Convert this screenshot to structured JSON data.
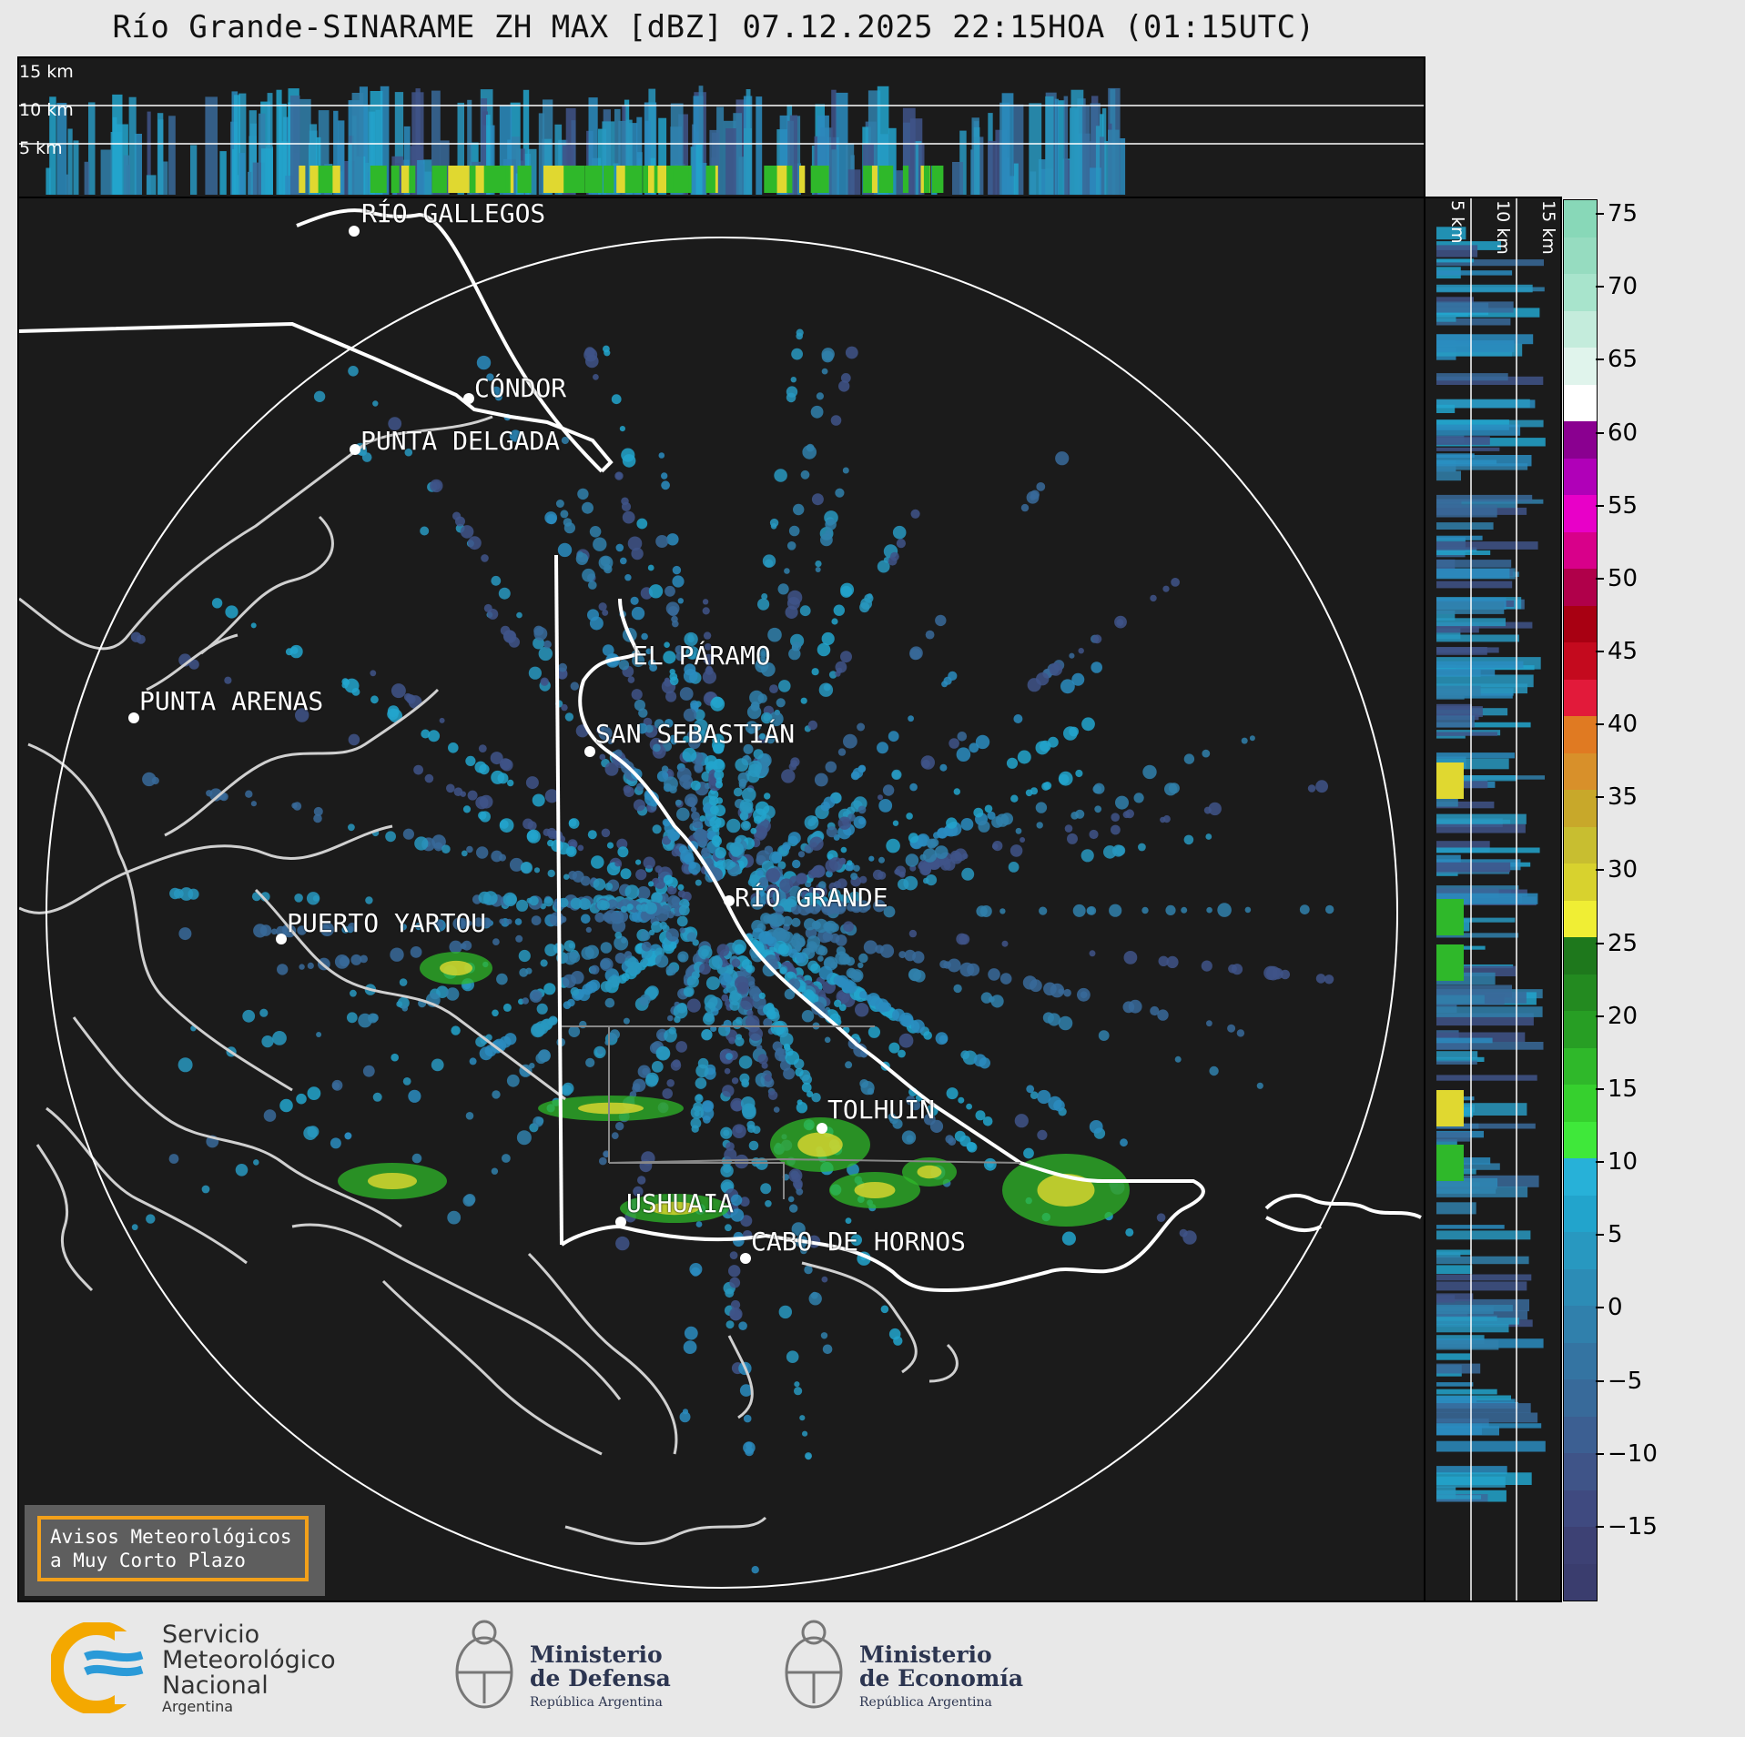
{
  "title": "Río Grande-SINARAME ZH MAX [dBZ] 07.12.2025 22:15HOA (01:15UTC)",
  "height_labels": [
    "15 km",
    "10 km",
    "5 km"
  ],
  "cities": [
    {
      "name": "RÍO GALLEGOS",
      "dot": [
        370,
        36
      ],
      "label": [
        465,
        18
      ]
    },
    {
      "name": "CÓNDOR",
      "dot": [
        494,
        220
      ],
      "label": [
        500,
        194
      ]
    },
    {
      "name": "PUNTA DELGADA",
      "dot": [
        369,
        276
      ],
      "label": [
        375,
        250
      ]
    },
    {
      "name": "EL PÁRAMO",
      "dot": [
        0,
        0
      ],
      "label": [
        674,
        486
      ]
    },
    {
      "name": "SAN SEBASTIÁN",
      "dot": [
        627,
        608
      ],
      "label": [
        633,
        572
      ]
    },
    {
      "name": "PUNTA ARENAS",
      "dot": [
        126,
        571
      ],
      "label": [
        132,
        537
      ]
    },
    {
      "name": "RÍO GRANDE",
      "dot": [
        780,
        772
      ],
      "label": [
        786,
        752
      ]
    },
    {
      "name": "PUERTO YARTOU",
      "dot": [
        288,
        814
      ],
      "label": [
        294,
        780
      ]
    },
    {
      "name": "TOLHUIN",
      "dot": [
        882,
        1022
      ],
      "label": [
        888,
        985
      ]
    },
    {
      "name": "USHUAIA",
      "dot": [
        661,
        1125
      ],
      "label": [
        667,
        1088
      ]
    },
    {
      "name": "CABO DE HORNOS",
      "dot": [
        798,
        1165
      ],
      "label": [
        804,
        1130
      ]
    }
  ],
  "colorbar": {
    "ticks": [
      75,
      70,
      65,
      60,
      55,
      50,
      45,
      40,
      35,
      30,
      25,
      20,
      15,
      10,
      5,
      0,
      -5,
      -10,
      -15
    ],
    "tick_labels": [
      "75",
      "70",
      "65",
      "60",
      "55",
      "50",
      "45",
      "40",
      "35",
      "30",
      "25",
      "20",
      "15",
      "10",
      "5",
      "0",
      "−5",
      "−10",
      "−15"
    ],
    "vmin": -20,
    "vmax": 76,
    "colors": [
      "#3a3d6e",
      "#3d4174",
      "#3f4a80",
      "#3f5488",
      "#3c5f92",
      "#386a9a",
      "#3474a2",
      "#3080ac",
      "#2c8cb6",
      "#2898c0",
      "#22a4cc",
      "#27b1d8",
      "#3fe83a",
      "#36d02e",
      "#2fb82a",
      "#279e24",
      "#238a20",
      "#1e781c",
      "#f0ee34",
      "#d8d22e",
      "#c8be30",
      "#c8a82a",
      "#d8902a",
      "#e07a22",
      "#e21a3a",
      "#c40a1e",
      "#a80012",
      "#b0004a",
      "#d8008a",
      "#e800c8",
      "#b000b8",
      "#8a0090",
      "#ffffff",
      "#e0f4ec",
      "#c4ecdc",
      "#a8e4cc",
      "#96dcc0",
      "#88d8b8"
    ]
  },
  "warning": {
    "line1": "Avisos Meteorológicos",
    "line2": "a Muy Corto Plazo"
  },
  "logos": {
    "smn": {
      "line1": "Servicio",
      "line2": "Meteorológico",
      "line3": "Nacional",
      "line4": "Argentina"
    },
    "defensa": {
      "line1": "Ministerio",
      "line2": "de Defensa",
      "line3": "República Argentina"
    },
    "economia": {
      "line1": "Ministerio",
      "line2": "de Economía",
      "line3": "República Argentina"
    }
  }
}
